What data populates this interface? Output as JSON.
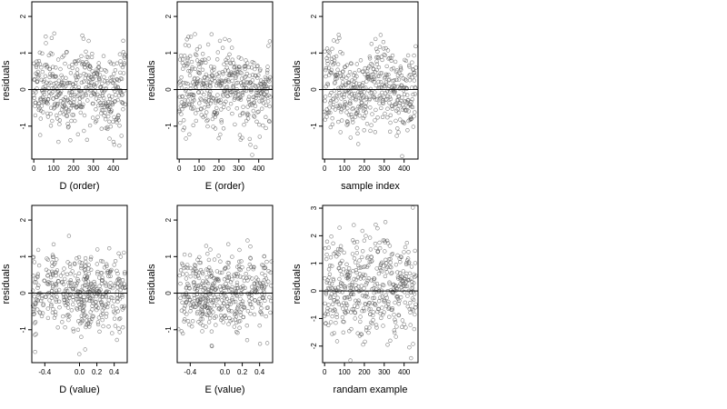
{
  "chart_data": [
    {
      "type": "scatter",
      "xlabel": "D (order)",
      "ylabel": "residuals",
      "xlim": [
        -10,
        470
      ],
      "ylim": [
        -1.9,
        2.4
      ],
      "xticks": [
        0,
        100,
        200,
        300,
        400
      ],
      "yticks": [
        -1,
        0,
        1,
        2
      ],
      "hline": 0,
      "n_points": 460,
      "pattern": "order",
      "seed": 11
    },
    {
      "type": "scatter",
      "xlabel": "E (order)",
      "ylabel": "residuals",
      "xlim": [
        -10,
        470
      ],
      "ylim": [
        -1.9,
        2.4
      ],
      "xticks": [
        0,
        100,
        200,
        300,
        400
      ],
      "yticks": [
        -1,
        0,
        1,
        2
      ],
      "hline": 0,
      "n_points": 460,
      "pattern": "order",
      "seed": 23
    },
    {
      "type": "scatter",
      "xlabel": "sample index",
      "ylabel": "residuals",
      "xlim": [
        -10,
        470
      ],
      "ylim": [
        -1.9,
        2.4
      ],
      "xticks": [
        0,
        100,
        200,
        300,
        400
      ],
      "yticks": [
        -1,
        0,
        1,
        2
      ],
      "hline": 0,
      "n_points": 460,
      "pattern": "order",
      "seed": 37
    },
    {
      "type": "scatter",
      "xlabel": "D (value)",
      "ylabel": "residuals",
      "xlim": [
        -0.55,
        0.55
      ],
      "ylim": [
        -1.9,
        2.4
      ],
      "xticks": [
        -0.4,
        0,
        0.2,
        0.4
      ],
      "xtick_labels": [
        "-0.4",
        "0.0",
        "0.2",
        "0.4"
      ],
      "yticks": [
        -1,
        0,
        1,
        2
      ],
      "hline": 0,
      "n_points": 460,
      "pattern": "clusters_d",
      "seed": 41
    },
    {
      "type": "scatter",
      "xlabel": "E (value)",
      "ylabel": "residuals",
      "xlim": [
        -0.55,
        0.55
      ],
      "ylim": [
        -1.9,
        2.4
      ],
      "xticks": [
        -0.4,
        0,
        0.2,
        0.4
      ],
      "xtick_labels": [
        "-0.4",
        "0.0",
        "0.2",
        "0.4"
      ],
      "yticks": [
        -1,
        0,
        1,
        2
      ],
      "hline": 0,
      "n_points": 460,
      "pattern": "clusters_e",
      "seed": 53
    },
    {
      "type": "scatter",
      "xlabel": "randam example",
      "ylabel": "residuals",
      "xlim": [
        -10,
        470
      ],
      "ylim": [
        -2.6,
        3.1
      ],
      "xticks": [
        0,
        100,
        200,
        300,
        400
      ],
      "yticks": [
        -2,
        -1,
        0,
        1,
        2,
        3
      ],
      "hline": 0,
      "n_points": 460,
      "pattern": "random",
      "seed": 67
    }
  ]
}
